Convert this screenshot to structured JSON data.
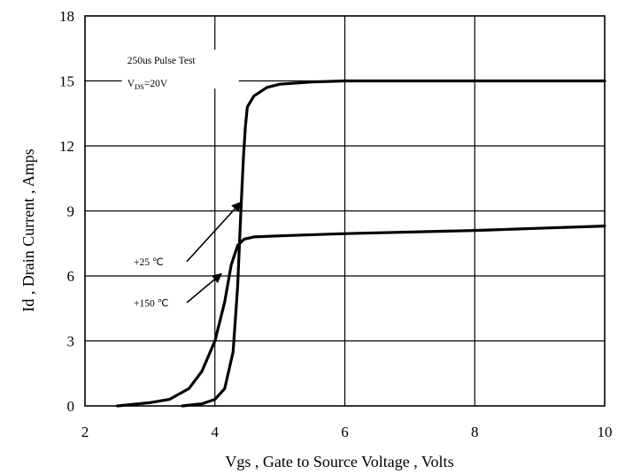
{
  "chart_data": {
    "type": "line",
    "xlabel": "Vgs , Gate to Source Voltage , Volts",
    "ylabel": "Id , Drain Current , Amps",
    "xlim": [
      2,
      10
    ],
    "ylim": [
      0,
      18
    ],
    "x_ticks": [
      2,
      4,
      6,
      8,
      10
    ],
    "y_ticks": [
      0,
      3,
      6,
      9,
      12,
      15,
      18
    ],
    "grid": true,
    "series": [
      {
        "name": "+25 ℃",
        "x": [
          3.5,
          3.8,
          4.0,
          4.15,
          4.28,
          4.35,
          4.4,
          4.44,
          4.47,
          4.5,
          4.6,
          4.8,
          5.0,
          5.5,
          6.0,
          10.0
        ],
        "y": [
          0.0,
          0.1,
          0.3,
          0.8,
          2.5,
          5.5,
          9.0,
          11.5,
          12.9,
          13.8,
          14.3,
          14.7,
          14.85,
          14.95,
          15.0,
          15.0
        ]
      },
      {
        "name": "+150 ℃",
        "x": [
          2.5,
          3.0,
          3.3,
          3.6,
          3.8,
          4.0,
          4.15,
          4.25,
          4.35,
          4.45,
          4.6,
          5.0,
          6.0,
          8.0,
          10.0
        ],
        "y": [
          0.0,
          0.15,
          0.3,
          0.8,
          1.6,
          3.0,
          4.8,
          6.5,
          7.4,
          7.7,
          7.8,
          7.85,
          7.95,
          8.1,
          8.3
        ]
      }
    ],
    "annotations": [
      {
        "text": "250us Pulse Test",
        "x": 2.65,
        "y": 15.8
      },
      {
        "text": "V",
        "sub": "DS",
        "suffix": "=20V",
        "x": 2.65,
        "y": 14.9
      },
      {
        "text": "+25 ℃",
        "x": 2.75,
        "y": 6.5,
        "arrow_to": [
          4.4,
          9.4
        ]
      },
      {
        "text": "+150 ℃",
        "x": 2.75,
        "y": 4.6,
        "arrow_to": [
          4.1,
          6.1
        ]
      }
    ]
  }
}
